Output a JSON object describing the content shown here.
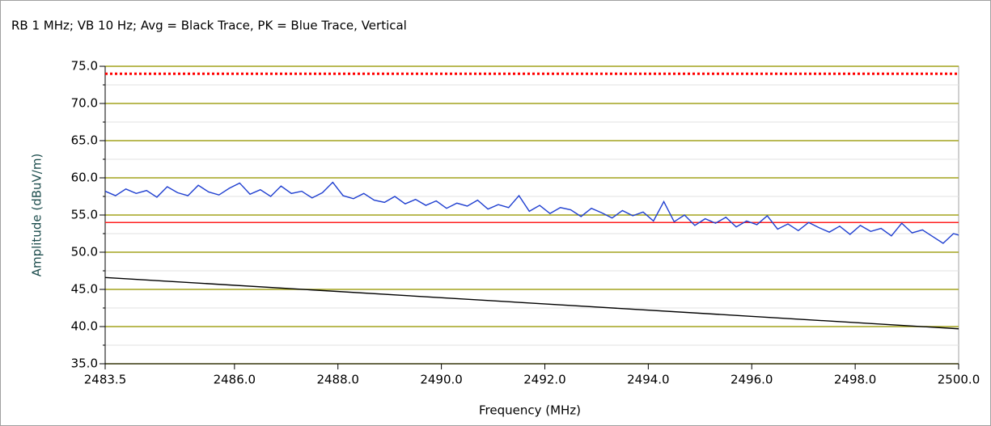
{
  "chart_data": {
    "type": "line",
    "title": "RB 1 MHz; VB 10 Hz; Avg = Black Trace, PK = Blue Trace, Vertical",
    "xlabel": "Frequency (MHz)",
    "ylabel": "Amplitude (dBuV/m)",
    "xlim": [
      2483.5,
      2500.0
    ],
    "xticks": [
      2483.5,
      {
        "value": 2486,
        "label": "2486.0"
      },
      {
        "value": 2488,
        "label": "2488.0"
      },
      {
        "value": 2490,
        "label": "2490.0"
      },
      {
        "value": 2492,
        "label": "2492.0"
      },
      {
        "value": 2494,
        "label": "2494.0"
      },
      {
        "value": 2496,
        "label": "2496.0"
      },
      {
        "value": 2498,
        "label": "2498.0"
      },
      {
        "value": 2500,
        "label": "2500.0"
      }
    ],
    "ylim": [
      35,
      75
    ],
    "yticks": [
      {
        "value": 35,
        "label": "35.0"
      },
      {
        "value": 40,
        "label": "40.0"
      },
      {
        "value": 45,
        "label": "45.0"
      },
      {
        "value": 50,
        "label": "50.0"
      },
      {
        "value": 55,
        "label": "55.0"
      },
      {
        "value": 60,
        "label": "60.0"
      },
      {
        "value": 65,
        "label": "65.0"
      },
      {
        "value": 70,
        "label": "70.0"
      },
      {
        "value": 75,
        "label": "75.0"
      }
    ],
    "minor_yticks": [
      37.5,
      42.5,
      47.5,
      52.5,
      57.5,
      62.5,
      67.5,
      72.5
    ],
    "grid": true,
    "grid_color": "#a3a31f",
    "hlines": [
      {
        "value": 74,
        "color": "#ff0000",
        "style": "dotted"
      },
      {
        "value": 54,
        "color": "#ff2020",
        "style": "solid"
      }
    ],
    "series": [
      {
        "color": "#1f3fd0",
        "x": [
          2483.5,
          2483.7,
          2483.9,
          2484.1,
          2484.3,
          2484.5,
          2484.7,
          2484.9,
          2485.1,
          2485.3,
          2485.5,
          2485.7,
          2485.9,
          2486.1,
          2486.3,
          2486.5,
          2486.7,
          2486.9,
          2487.1,
          2487.3,
          2487.5,
          2487.7,
          2487.9,
          2488.1,
          2488.3,
          2488.5,
          2488.7,
          2488.9,
          2489.1,
          2489.3,
          2489.5,
          2489.7,
          2489.9,
          2490.1,
          2490.3,
          2490.5,
          2490.7,
          2490.9,
          2491.1,
          2491.3,
          2491.5,
          2491.7,
          2491.9,
          2492.1,
          2492.3,
          2492.5,
          2492.7,
          2492.9,
          2493.1,
          2493.3,
          2493.5,
          2493.7,
          2493.9,
          2494.1,
          2494.3,
          2494.5,
          2494.7,
          2494.9,
          2495.1,
          2495.3,
          2495.5,
          2495.7,
          2495.9,
          2496.1,
          2496.3,
          2496.5,
          2496.7,
          2496.9,
          2497.1,
          2497.3,
          2497.5,
          2497.7,
          2497.9,
          2498.1,
          2498.3,
          2498.5,
          2498.7,
          2498.9,
          2499.1,
          2499.3,
          2499.5,
          2499.7,
          2499.9,
          2500.0
        ],
        "values": [
          58.2,
          57.6,
          58.5,
          57.9,
          58.3,
          57.4,
          58.8,
          58.0,
          57.6,
          59.0,
          58.1,
          57.7,
          58.6,
          59.3,
          57.8,
          58.4,
          57.5,
          58.9,
          57.9,
          58.2,
          57.3,
          58.0,
          59.4,
          57.6,
          57.2,
          57.9,
          57.0,
          56.7,
          57.5,
          56.5,
          57.1,
          56.3,
          56.9,
          55.9,
          56.6,
          56.2,
          57.0,
          55.8,
          56.4,
          56.0,
          57.6,
          55.5,
          56.3,
          55.2,
          56.0,
          55.7,
          54.8,
          55.9,
          55.3,
          54.6,
          55.6,
          54.9,
          55.4,
          54.2,
          56.8,
          54.1,
          55.0,
          53.6,
          54.5,
          53.9,
          54.7,
          53.4,
          54.2,
          53.7,
          54.9,
          53.1,
          53.8,
          52.9,
          54.0,
          53.3,
          52.7,
          53.5,
          52.4,
          53.6,
          52.8,
          53.2,
          52.2,
          53.9,
          52.6,
          53.0,
          52.1,
          51.2,
          52.5,
          52.3
        ]
      },
      {
        "color": "#000000",
        "x": [
          2483.5,
          2500.0
        ],
        "values": [
          46.6,
          39.7
        ]
      }
    ]
  }
}
